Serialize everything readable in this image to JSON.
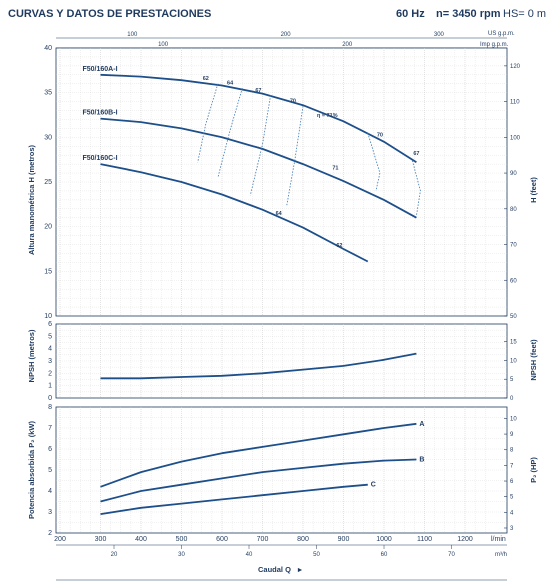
{
  "header": {
    "title": "CURVAS Y DATOS DE PRESTACIONES",
    "frequency": "60 Hz",
    "speed": "n= 3450 rpm",
    "suction": "HS= 0 m"
  },
  "colors": {
    "curve": "#1d4f8a",
    "efficiency": "#3a78b8",
    "grid": "#d0d0d0",
    "text": "#1f3a5f"
  },
  "chart_data": [
    {
      "type": "line",
      "name": "head",
      "ylabel": "Altura manométrica H (metros)",
      "ylabel_right": "H (feet)",
      "xlim": [
        200,
        1300
      ],
      "ylim": [
        10,
        40
      ],
      "y_ticks": [
        10,
        15,
        20,
        25,
        30,
        35,
        40
      ],
      "y_ticks_right": [
        50,
        60,
        70,
        80,
        90,
        100,
        110,
        120
      ],
      "right_axis_unit": "feet",
      "top_scale_us": {
        "label": "US g.p.m.",
        "ticks": [
          100,
          200,
          300
        ]
      },
      "top_scale_imp": {
        "label": "Imp g.p.m.",
        "ticks": [
          100,
          200
        ]
      },
      "series": [
        {
          "name": "F50/160A-I",
          "x": [
            300,
            400,
            500,
            600,
            700,
            800,
            900,
            1000,
            1080
          ],
          "values": [
            37.0,
            36.8,
            36.4,
            35.8,
            34.9,
            33.6,
            31.8,
            29.5,
            27.2
          ]
        },
        {
          "name": "F50/160B-I",
          "x": [
            300,
            400,
            500,
            600,
            700,
            800,
            900,
            1000,
            1080
          ],
          "values": [
            32.1,
            31.7,
            31.0,
            30.0,
            28.7,
            27.0,
            25.1,
            23.0,
            21.0
          ]
        },
        {
          "name": "F50/160C-I",
          "x": [
            300,
            400,
            500,
            600,
            700,
            800,
            900,
            960
          ],
          "values": [
            27.0,
            26.1,
            25.0,
            23.6,
            21.9,
            19.9,
            17.5,
            16.1
          ]
        }
      ],
      "efficiency_labels": [
        "62",
        "64",
        "67",
        "70",
        "η = 71%",
        "70",
        "67",
        "71",
        "64",
        "62"
      ]
    },
    {
      "type": "line",
      "name": "npsh",
      "ylabel": "NPSH (metros)",
      "ylabel_right": "NPSH (feet)",
      "ylim": [
        0,
        6
      ],
      "y_ticks": [
        0,
        1,
        2,
        3,
        4,
        5,
        6
      ],
      "y_ticks_right": [
        0,
        5,
        10,
        15
      ],
      "series": [
        {
          "name": "",
          "x": [
            300,
            400,
            500,
            600,
            700,
            800,
            900,
            1000,
            1080
          ],
          "values": [
            1.6,
            1.6,
            1.7,
            1.8,
            2.0,
            2.3,
            2.6,
            3.1,
            3.6
          ]
        }
      ]
    },
    {
      "type": "line",
      "name": "power",
      "ylabel": "Potencia absorbida P₂ (kW)",
      "ylabel_right": "P₂ (HP)",
      "ylim": [
        2,
        8
      ],
      "y_ticks": [
        2,
        3,
        4,
        5,
        6,
        7,
        8
      ],
      "y_ticks_right": [
        3,
        4,
        5,
        6,
        7,
        8,
        9,
        10
      ],
      "xlabel_unit": "l/min",
      "xlabel_unit_bottom": "m³/h",
      "x_ticks": [
        200,
        300,
        400,
        500,
        600,
        700,
        800,
        900,
        1000,
        1100,
        1200
      ],
      "x_ticks_m3h": [
        20,
        30,
        40,
        50,
        60,
        70
      ],
      "series": [
        {
          "name": "A",
          "x": [
            300,
            400,
            500,
            600,
            700,
            800,
            900,
            1000,
            1080
          ],
          "values": [
            4.2,
            4.9,
            5.4,
            5.8,
            6.1,
            6.4,
            6.7,
            7.0,
            7.2
          ]
        },
        {
          "name": "B",
          "x": [
            300,
            400,
            500,
            600,
            700,
            800,
            900,
            1000,
            1080
          ],
          "values": [
            3.5,
            4.0,
            4.3,
            4.6,
            4.9,
            5.1,
            5.3,
            5.45,
            5.5
          ]
        },
        {
          "name": "C",
          "x": [
            300,
            400,
            500,
            600,
            700,
            800,
            900,
            960
          ],
          "values": [
            2.9,
            3.2,
            3.4,
            3.6,
            3.8,
            4.0,
            4.2,
            4.3
          ]
        }
      ]
    }
  ],
  "footer": {
    "xlabel": "Caudal Q"
  },
  "right_axis_small": "feet"
}
